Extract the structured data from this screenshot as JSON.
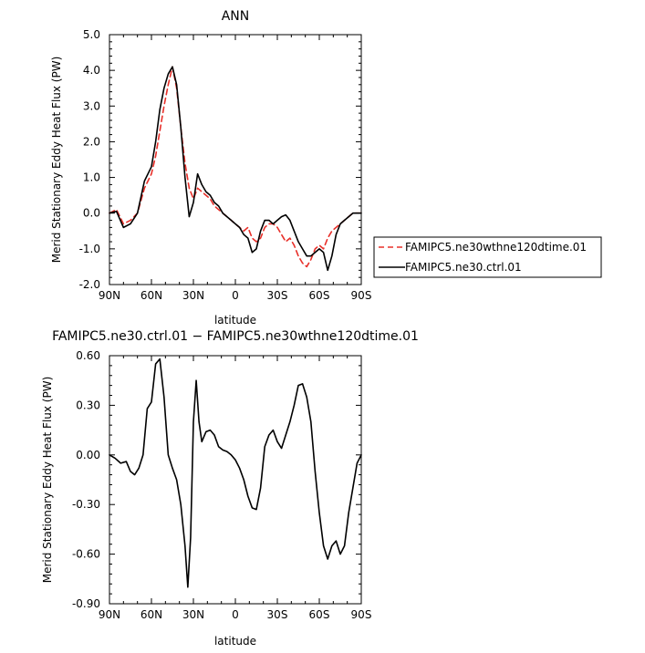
{
  "chart_data": [
    {
      "type": "line",
      "title": "ANN",
      "xlabel": "latitude",
      "ylabel": "Merid Stationary Eddy Heat Flux (PW)",
      "xlim": [
        90,
        -90
      ],
      "ylim": [
        -2.0,
        5.0
      ],
      "x_ticks": [
        90,
        60,
        30,
        0,
        -30,
        -60,
        -90
      ],
      "x_tick_labels": [
        "90N",
        "60N",
        "30N",
        "0",
        "30S",
        "60S",
        "90S"
      ],
      "y_ticks": [
        -2.0,
        -1.0,
        0.0,
        1.0,
        2.0,
        3.0,
        4.0,
        5.0
      ],
      "y_tick_labels": [
        "-2.0",
        "-1.0",
        "0.0",
        "1.0",
        "2.0",
        "3.0",
        "4.0",
        "5.0"
      ],
      "legend": "outside-right",
      "grid": false,
      "series": [
        {
          "name": "FAMIPC5.ne30wthne120dtime.01",
          "color": "#e8302a",
          "dash": "dashed",
          "x": [
            90,
            85,
            80,
            75,
            70,
            65,
            60,
            57,
            54,
            51,
            48,
            45,
            42,
            39,
            36,
            33,
            30,
            27,
            24,
            21,
            18,
            15,
            12,
            9,
            6,
            3,
            0,
            -3,
            -6,
            -9,
            -12,
            -15,
            -18,
            -21,
            -24,
            -27,
            -30,
            -33,
            -36,
            -39,
            -42,
            -45,
            -48,
            -51,
            -54,
            -57,
            -60,
            -63,
            -66,
            -69,
            -72,
            -75,
            -78,
            -81,
            -84,
            -87,
            -90
          ],
          "y": [
            0.0,
            0.1,
            -0.3,
            -0.2,
            0.0,
            0.7,
            1.1,
            1.6,
            2.3,
            3.0,
            3.6,
            4.1,
            3.5,
            2.4,
            1.4,
            0.7,
            0.4,
            0.7,
            0.6,
            0.5,
            0.4,
            0.2,
            0.1,
            0.0,
            -0.1,
            -0.2,
            -0.3,
            -0.4,
            -0.5,
            -0.4,
            -0.7,
            -0.8,
            -0.7,
            -0.4,
            -0.3,
            -0.3,
            -0.4,
            -0.6,
            -0.8,
            -0.7,
            -0.9,
            -1.2,
            -1.4,
            -1.5,
            -1.3,
            -1.0,
            -0.9,
            -1.0,
            -0.7,
            -0.5,
            -0.4,
            -0.3,
            -0.2,
            -0.1,
            0.0,
            0.0,
            0.0
          ]
        },
        {
          "name": "FAMIPC5.ne30.ctrl.01",
          "color": "#000000",
          "dash": "solid",
          "x": [
            90,
            85,
            80,
            75,
            70,
            65,
            60,
            57,
            54,
            51,
            48,
            45,
            42,
            39,
            36,
            33,
            30,
            27,
            24,
            21,
            18,
            15,
            12,
            9,
            6,
            3,
            0,
            -3,
            -6,
            -9,
            -12,
            -15,
            -18,
            -21,
            -24,
            -27,
            -30,
            -33,
            -36,
            -39,
            -42,
            -45,
            -48,
            -51,
            -54,
            -57,
            -60,
            -63,
            -66,
            -69,
            -72,
            -75,
            -78,
            -81,
            -84,
            -87,
            -90
          ],
          "y": [
            0.0,
            0.05,
            -0.4,
            -0.3,
            0.0,
            0.9,
            1.3,
            2.0,
            2.9,
            3.5,
            3.9,
            4.1,
            3.6,
            2.4,
            1.0,
            -0.1,
            0.3,
            1.1,
            0.8,
            0.6,
            0.5,
            0.3,
            0.2,
            0.0,
            -0.1,
            -0.2,
            -0.3,
            -0.4,
            -0.6,
            -0.7,
            -1.1,
            -1.0,
            -0.5,
            -0.2,
            -0.2,
            -0.3,
            -0.2,
            -0.1,
            -0.05,
            -0.2,
            -0.5,
            -0.8,
            -1.0,
            -1.2,
            -1.2,
            -1.1,
            -1.0,
            -1.1,
            -1.6,
            -1.2,
            -0.6,
            -0.3,
            -0.2,
            -0.1,
            0.0,
            0.0,
            0.0
          ]
        }
      ]
    },
    {
      "type": "line",
      "title": "FAMIPC5.ne30.ctrl.01  −  FAMIPC5.ne30wthne120dtime.01",
      "xlabel": "latitude",
      "ylabel": "Merid Stationary Eddy Heat Flux (PW)",
      "xlim": [
        90,
        -90
      ],
      "ylim": [
        -0.9,
        0.6
      ],
      "x_ticks": [
        90,
        60,
        30,
        0,
        -30,
        -60,
        -90
      ],
      "x_tick_labels": [
        "90N",
        "60N",
        "30N",
        "0",
        "30S",
        "60S",
        "90S"
      ],
      "y_ticks": [
        -0.9,
        -0.6,
        -0.3,
        0.0,
        0.3,
        0.6
      ],
      "y_tick_labels": [
        "-0.90",
        "-0.60",
        "-0.30",
        "0.00",
        "0.30",
        "0.60"
      ],
      "grid": false,
      "series": [
        {
          "color": "#000000",
          "dash": "solid",
          "x": [
            90,
            86,
            82,
            78,
            75,
            72,
            69,
            66,
            63,
            60,
            57,
            54,
            51,
            48,
            45,
            42,
            39,
            36,
            34,
            32,
            30,
            28,
            26,
            24,
            21,
            18,
            15,
            12,
            9,
            6,
            3,
            0,
            -3,
            -6,
            -9,
            -12,
            -15,
            -18,
            -21,
            -24,
            -27,
            -30,
            -33,
            -36,
            -39,
            -42,
            -45,
            -48,
            -51,
            -54,
            -57,
            -60,
            -63,
            -66,
            -69,
            -72,
            -75,
            -78,
            -81,
            -84,
            -87,
            -90
          ],
          "y": [
            0.0,
            -0.02,
            -0.05,
            -0.04,
            -0.1,
            -0.12,
            -0.08,
            0.0,
            0.28,
            0.32,
            0.55,
            0.58,
            0.35,
            0.0,
            -0.08,
            -0.15,
            -0.3,
            -0.55,
            -0.8,
            -0.5,
            0.2,
            0.45,
            0.2,
            0.08,
            0.14,
            0.15,
            0.12,
            0.05,
            0.03,
            0.02,
            0.0,
            -0.03,
            -0.08,
            -0.15,
            -0.25,
            -0.32,
            -0.33,
            -0.2,
            0.05,
            0.12,
            0.15,
            0.08,
            0.04,
            0.12,
            0.2,
            0.3,
            0.42,
            0.43,
            0.35,
            0.2,
            -0.1,
            -0.35,
            -0.55,
            -0.63,
            -0.55,
            -0.52,
            -0.6,
            -0.55,
            -0.35,
            -0.2,
            -0.05,
            0.0
          ]
        }
      ]
    }
  ]
}
